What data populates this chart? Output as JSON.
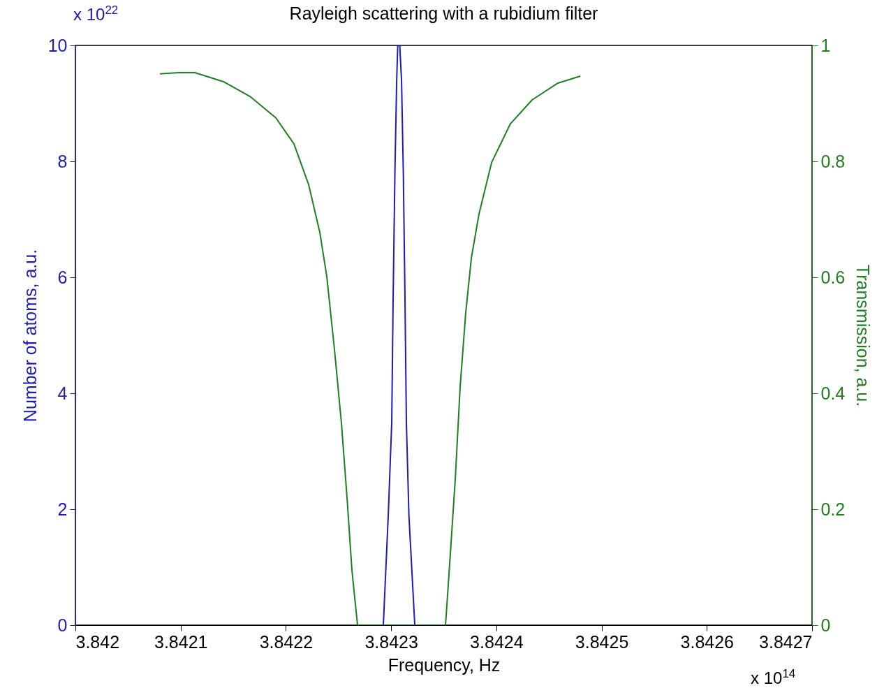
{
  "chart_data": {
    "type": "line",
    "title": "Rayleigh scattering with a rubidium filter",
    "xlabel": "Frequency, Hz",
    "ylabel": "Number of atoms, a.u.",
    "y2label": "Transmission, a.u.",
    "xlim": [
      3.842,
      3.8427
    ],
    "xticks": [
      3.842,
      3.8421,
      3.8422,
      3.8423,
      3.8424,
      3.8425,
      3.8426,
      3.8427
    ],
    "ylim": [
      0,
      10
    ],
    "yticks": [
      0,
      2,
      4,
      6,
      8,
      10
    ],
    "y2lim": [
      0,
      1
    ],
    "y2ticks": [
      0,
      0.2,
      0.4,
      0.6,
      0.8,
      1
    ],
    "annotations": [
      "x 10$^{22}$",
      "x 10$^{14}$"
    ],
    "series": [
      {
        "color": "#1c1cb4",
        "x": [
          3.8422688,
          3.8422926,
          3.8422973,
          3.8423006,
          3.8423019,
          3.8423036,
          3.8423053,
          3.8423063,
          3.8423082,
          3.8423099,
          3.8423116,
          3.8423132,
          3.8423145,
          3.8423169,
          3.8423225,
          3.842353
        ],
        "values": [
          0,
          0,
          1.9,
          3.5,
          5.6,
          7.8,
          9.4,
          10,
          10,
          9.4,
          7.8,
          5.6,
          3.5,
          1.9,
          0,
          0
        ]
      },
      {
        "color": "#1f7f1f",
        "axis": "y2",
        "x": [
          3.8420803,
          3.8420995,
          3.8421135,
          3.8421413,
          3.8421659,
          3.8421905,
          3.8422077,
          3.8422216,
          3.8422323,
          3.8422389,
          3.8422462,
          3.8422528,
          3.8422581,
          3.8422628,
          3.8422681,
          3.8423517,
          3.8423557,
          3.842361,
          3.8423656,
          3.8423709,
          3.8423763,
          3.8423836,
          3.8423955,
          3.8424134,
          3.842434,
          3.8424585,
          3.8424798
        ],
        "values": [
          0.951,
          0.953,
          0.953,
          0.937,
          0.912,
          0.875,
          0.83,
          0.76,
          0.677,
          0.601,
          0.475,
          0.348,
          0.22,
          0.094,
          0,
          0,
          0.107,
          0.253,
          0.411,
          0.539,
          0.634,
          0.71,
          0.798,
          0.865,
          0.906,
          0.935,
          0.947
        ]
      }
    ]
  }
}
